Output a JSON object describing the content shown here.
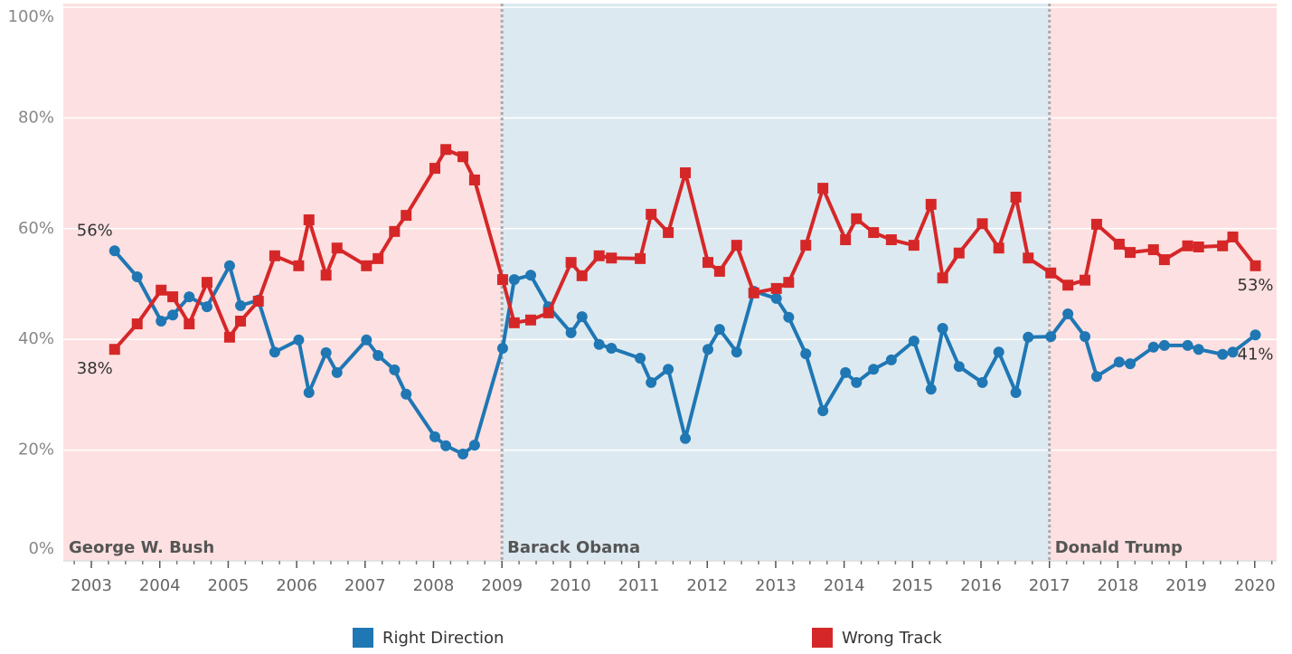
{
  "chart_data": {
    "type": "line",
    "x": [
      2003.34,
      2003.67,
      2004.02,
      2004.19,
      2004.43,
      2004.69,
      2005.02,
      2005.18,
      2005.44,
      2005.68,
      2006.03,
      2006.18,
      2006.43,
      2006.59,
      2007.02,
      2007.19,
      2007.43,
      2007.6,
      2008.02,
      2008.18,
      2008.43,
      2008.6,
      2009.01,
      2009.18,
      2009.42,
      2009.68,
      2010.01,
      2010.17,
      2010.42,
      2010.6,
      2011.02,
      2011.18,
      2011.43,
      2011.68,
      2012.01,
      2012.18,
      2012.43,
      2012.68,
      2013.01,
      2013.19,
      2013.44,
      2013.69,
      2014.02,
      2014.18,
      2014.43,
      2014.69,
      2015.02,
      2015.27,
      2015.44,
      2015.68,
      2016.02,
      2016.26,
      2016.51,
      2016.69,
      2017.02,
      2017.27,
      2017.52,
      2017.69,
      2018.02,
      2018.18,
      2018.52,
      2018.68,
      2019.02,
      2019.18,
      2019.53,
      2019.68,
      2020.01
    ],
    "series": [
      {
        "name": "Right Direction",
        "color": "#1f77b4",
        "marker": "circle",
        "values": [
          56.0,
          51.3,
          43.3,
          44.4,
          47.7,
          45.9,
          53.3,
          46.1,
          47.1,
          37.7,
          39.9,
          30.4,
          37.6,
          34.0,
          39.9,
          37.1,
          34.5,
          30.1,
          22.4,
          20.8,
          19.3,
          20.9,
          38.4,
          50.8,
          51.6,
          45.9,
          41.2,
          44.1,
          39.1,
          38.4,
          36.6,
          32.2,
          34.6,
          22.1,
          38.2,
          41.8,
          37.7,
          48.7,
          47.4,
          44.0,
          37.4,
          27.1,
          34.0,
          32.2,
          34.6,
          36.3,
          39.7,
          31.0,
          42.0,
          35.1,
          32.2,
          37.7,
          30.4,
          40.4,
          40.5,
          44.6,
          40.5,
          33.3,
          35.9,
          35.6,
          38.6,
          38.9,
          38.9,
          38.2,
          37.3,
          37.7,
          40.8
        ],
        "value_labels": [
          "56%",
          null,
          null,
          null,
          null,
          null,
          null,
          null,
          null,
          null,
          null,
          null,
          null,
          null,
          null,
          null,
          null,
          null,
          null,
          null,
          null,
          null,
          null,
          null,
          null,
          null,
          null,
          null,
          null,
          null,
          null,
          null,
          null,
          null,
          null,
          null,
          null,
          null,
          null,
          null,
          null,
          null,
          null,
          null,
          null,
          null,
          null,
          null,
          null,
          null,
          null,
          null,
          null,
          null,
          null,
          null,
          null,
          null,
          null,
          null,
          null,
          null,
          null,
          null,
          null,
          null,
          "41%"
        ]
      },
      {
        "name": "Wrong Track",
        "color": "#d62728",
        "marker": "square",
        "values": [
          38.2,
          42.8,
          48.9,
          47.7,
          42.8,
          50.3,
          40.4,
          43.3,
          46.9,
          55.1,
          53.3,
          61.6,
          51.6,
          56.5,
          53.3,
          54.6,
          59.5,
          62.4,
          70.9,
          74.3,
          73.0,
          68.8,
          50.8,
          43.0,
          43.5,
          44.8,
          53.9,
          51.5,
          55.1,
          54.7,
          54.6,
          62.6,
          59.3,
          70.1,
          53.9,
          52.3,
          57.0,
          48.4,
          49.2,
          50.3,
          57.0,
          67.3,
          58.0,
          61.8,
          59.3,
          58.0,
          57.0,
          64.4,
          51.1,
          55.6,
          60.9,
          56.5,
          65.7,
          54.7,
          52.0,
          49.8,
          50.7,
          60.8,
          57.2,
          55.7,
          56.2,
          54.4,
          56.9,
          56.7,
          56.9,
          58.5,
          53.3
        ],
        "value_labels": [
          "38%",
          null,
          null,
          null,
          null,
          null,
          null,
          null,
          null,
          null,
          null,
          null,
          null,
          null,
          null,
          null,
          null,
          null,
          null,
          null,
          null,
          null,
          null,
          null,
          null,
          null,
          null,
          null,
          null,
          null,
          null,
          null,
          null,
          null,
          null,
          null,
          null,
          null,
          null,
          null,
          null,
          null,
          null,
          null,
          null,
          null,
          null,
          null,
          null,
          null,
          null,
          null,
          null,
          null,
          null,
          null,
          null,
          null,
          null,
          null,
          null,
          null,
          null,
          null,
          null,
          null,
          "53%"
        ]
      }
    ],
    "periods": [
      {
        "name": "George W. Bush",
        "start": 2002.59,
        "end": 2009,
        "color": "#fde0e1"
      },
      {
        "name": "Barack Obama",
        "start": 2009,
        "end": 2017,
        "color": "#dde9f0"
      },
      {
        "name": "Donald Trump",
        "start": 2017,
        "end": 2020.32,
        "color": "#fde0e1"
      }
    ],
    "xlim": [
      2002.59,
      2020.32
    ],
    "xticks": [
      2003,
      2004,
      2005,
      2006,
      2007,
      2008,
      2009,
      2010,
      2011,
      2012,
      2013,
      2014,
      2015,
      2016,
      2017,
      2018,
      2019,
      2020
    ],
    "ylim": [
      0,
      100
    ],
    "yticks": [
      {
        "value": 0,
        "label": "0%"
      },
      {
        "value": 20,
        "label": "20%"
      },
      {
        "value": 40,
        "label": "40%"
      },
      {
        "value": 60,
        "label": "60%"
      },
      {
        "value": 80,
        "label": "80%"
      },
      {
        "value": 100,
        "label": "100%"
      }
    ],
    "grid": true
  }
}
